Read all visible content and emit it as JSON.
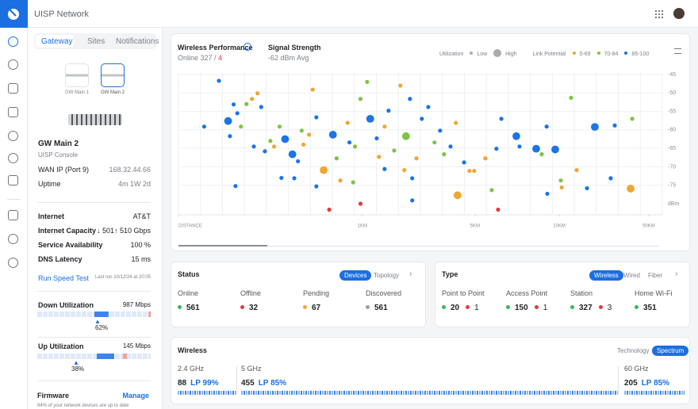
{
  "header": {
    "title": "UISP Network"
  },
  "sidebar": {
    "tabs": [
      "Gateway",
      "Sites",
      "Notifications"
    ],
    "devices": [
      "GW Main 1",
      "GW Main 2"
    ],
    "gateway": {
      "name": "GW Main 2",
      "subtitle": "UISP Console",
      "rows": [
        [
          "WAN IP (Port 9)",
          "168.32.44.66"
        ],
        [
          "Uptime",
          "4m 1W 2d"
        ]
      ]
    },
    "internet": {
      "rows": [
        [
          "Internet",
          "AT&T"
        ],
        [
          "Internet Capacity",
          "↓ 501↑ 510 Gbps"
        ],
        [
          "Service Availability",
          "100 %"
        ],
        [
          "DNS Latency",
          "15 ms"
        ]
      ]
    },
    "speed_test": {
      "action": "Run Speed Test",
      "last_run": "Last run 10/12/24 at 20:05"
    },
    "down": {
      "label": "Down Utilization",
      "max": "987 Mbps",
      "percent": "62%"
    },
    "up": {
      "label": "Up Utilization",
      "max": "145 Mbps",
      "percent": "38%"
    },
    "firmware": {
      "title": "Firmware",
      "action": "Manage",
      "note": "84% of your network devices are up to date"
    }
  },
  "performance": {
    "title": "Wireless Performance",
    "online": "Online 327 / ",
    "offline": "4",
    "signal_title": "Signal Strength",
    "signal_value": "-62 dBm Avg",
    "legend": {
      "utilization": "Utilization",
      "low": "Low",
      "high": "High",
      "link_potential": "Link Potential",
      "ranges": [
        "0-69",
        "70-84",
        "85-100"
      ]
    },
    "point_colors": [
      "#f2a530",
      "#7cc443",
      "#1b74e8",
      "#e23b3b"
    ],
    "xticks": [
      {
        "value": 0,
        "label": "DISTANCE"
      },
      {
        "value": 1,
        "label": "1KM"
      },
      {
        "value": 5,
        "label": "5KM"
      },
      {
        "value": 10,
        "label": "10KM"
      },
      {
        "value": 50,
        "label": "50KM"
      }
    ],
    "ylim": [
      -45,
      -83
    ],
    "yticks": [
      -45,
      -50,
      -55,
      -60,
      -65,
      -70,
      -75
    ],
    "y_unit": "dBm",
    "points": [
      [
        0.22,
        -46.7,
        1,
        2
      ],
      [
        0.14,
        -59.1,
        1,
        2
      ],
      [
        0.31,
        -75.2,
        1,
        2
      ],
      [
        0.3,
        -53.1,
        1,
        2
      ],
      [
        0.27,
        -57.6,
        2,
        2
      ],
      [
        0.28,
        -61.7,
        1,
        2
      ],
      [
        0.32,
        -55.5,
        1,
        2
      ],
      [
        0.34,
        -59.1,
        1,
        1
      ],
      [
        0.37,
        -53,
        1,
        1
      ],
      [
        0.4,
        -51.6,
        1,
        0
      ],
      [
        0.43,
        -50.1,
        1,
        0
      ],
      [
        0.45,
        -53.8,
        1,
        2
      ],
      [
        0.5,
        -63,
        1,
        1
      ],
      [
        0.55,
        -59.1,
        1,
        1
      ],
      [
        0.58,
        -62.5,
        2,
        2
      ],
      [
        0.62,
        -66.6,
        2,
        2
      ],
      [
        0.56,
        -73,
        1,
        2
      ],
      [
        0.65,
        -68.5,
        1,
        2
      ],
      [
        0.68,
        -64,
        1,
        0
      ],
      [
        0.71,
        -61.3,
        1,
        0
      ],
      [
        0.75,
        -56.6,
        1,
        2
      ],
      [
        0.79,
        -70.9,
        2,
        0
      ],
      [
        0.82,
        -81.6,
        1,
        3
      ],
      [
        0.84,
        -61.3,
        2,
        2
      ],
      [
        0.86,
        -67.7,
        1,
        1
      ],
      [
        0.88,
        -73.7,
        1,
        0
      ],
      [
        0.92,
        -58.1,
        1,
        0
      ],
      [
        0.93,
        -63.4,
        1,
        2
      ],
      [
        0.96,
        -64.5,
        1,
        1
      ],
      [
        0.99,
        -51.6,
        1,
        1
      ],
      [
        1.17,
        -47,
        1,
        1
      ],
      [
        1.28,
        -57,
        2,
        2
      ],
      [
        1.51,
        -62.3,
        1,
        2
      ],
      [
        1.59,
        -67.3,
        1,
        0
      ],
      [
        1.79,
        -59.1,
        1,
        0
      ],
      [
        1.93,
        -54.8,
        1,
        2
      ],
      [
        2.13,
        -65.6,
        1,
        1
      ],
      [
        2.35,
        -48,
        1,
        0
      ],
      [
        2.55,
        -61.7,
        2,
        1
      ],
      [
        2.69,
        -51.6,
        1,
        2
      ],
      [
        2.77,
        -73.1,
        1,
        2
      ],
      [
        2.92,
        -67.7,
        1,
        0
      ],
      [
        3.11,
        -57,
        1,
        2
      ],
      [
        3.34,
        -53.8,
        1,
        2
      ],
      [
        3.56,
        -63.4,
        1,
        1
      ],
      [
        3.76,
        -60.2,
        1,
        2
      ],
      [
        3.9,
        -66.6,
        1,
        1
      ],
      [
        4.13,
        -64.5,
        1,
        2
      ],
      [
        4.32,
        -58.1,
        1,
        0
      ],
      [
        4.38,
        -77.7,
        2,
        0
      ],
      [
        4.61,
        -68.8,
        1,
        2
      ],
      [
        4.8,
        -71.1,
        1,
        0
      ],
      [
        4.97,
        -71.1,
        1,
        0
      ],
      [
        5.61,
        -67.7,
        1,
        0
      ],
      [
        5.99,
        -76.3,
        1,
        1
      ],
      [
        6.27,
        -65.1,
        1,
        2
      ],
      [
        6.37,
        -81.6,
        1,
        3
      ],
      [
        6.56,
        -57,
        1,
        2
      ],
      [
        7.45,
        -61.7,
        2,
        2
      ],
      [
        7.64,
        -64.5,
        1,
        2
      ],
      [
        8.63,
        -65.1,
        2,
        2
      ],
      [
        8.96,
        -66.6,
        1,
        1
      ],
      [
        9.29,
        -77.3,
        1,
        2
      ],
      [
        9.25,
        -59.1,
        1,
        2
      ],
      [
        9.76,
        -65.3,
        2,
        2
      ],
      [
        10.7,
        -73.7,
        1,
        1
      ],
      [
        11.1,
        -75.6,
        1,
        0
      ],
      [
        15.3,
        -51.3,
        1,
        1
      ],
      [
        17.8,
        -70.9,
        1,
        0
      ],
      [
        22.4,
        -75.8,
        1,
        2
      ],
      [
        25.9,
        -59.2,
        2,
        2
      ],
      [
        33,
        -73.1,
        1,
        2
      ],
      [
        34.8,
        -58.8,
        1,
        2
      ],
      [
        41.9,
        -75.9,
        2,
        0
      ],
      [
        42.6,
        -57,
        1,
        1
      ],
      [
        0.99,
        -80,
        1,
        3
      ],
      [
        0.73,
        -49.1,
        1,
        0
      ],
      [
        0.52,
        -64.5,
        1,
        0
      ],
      [
        0.67,
        -60.2,
        1,
        1
      ],
      [
        0.41,
        -64.5,
        1,
        2
      ],
      [
        0.47,
        -65.8,
        1,
        2
      ],
      [
        0.75,
        -75.3,
        1,
        2
      ],
      [
        0.63,
        -73.1,
        1,
        2
      ],
      [
        0.95,
        -74.2,
        1,
        1
      ],
      [
        2.77,
        -79.1,
        1,
        2
      ],
      [
        1.79,
        -70.6,
        1,
        2
      ],
      [
        2.49,
        -70.9,
        1,
        0
      ]
    ]
  },
  "status": {
    "title": "Status",
    "tabs": [
      "Devices",
      "Topology"
    ],
    "items": [
      {
        "label": "Online",
        "value": "561",
        "color": "#3cb55a"
      },
      {
        "label": "Offline",
        "value": "32",
        "color": "#e23b3b"
      },
      {
        "label": "Pending",
        "value": "67",
        "color": "#f2a530"
      },
      {
        "label": "Discovered",
        "value": "561",
        "color": "#9aa0a6"
      }
    ]
  },
  "type": {
    "title": "Type",
    "tabs": [
      "Wireless",
      "Wired",
      "Fiber"
    ],
    "items": [
      {
        "label": "Point to Point",
        "ok": "20",
        "bad": "1"
      },
      {
        "label": "Access Point",
        "ok": "150",
        "bad": "1"
      },
      {
        "label": "Station",
        "ok": "327",
        "bad": "3"
      },
      {
        "label": "Home Wi-Fi",
        "ok": "351"
      }
    ]
  },
  "wireless": {
    "title": "Wireless",
    "tabs": [
      "Technology",
      "Spectrum"
    ],
    "bands": [
      {
        "name": "2.4 GHz",
        "count": "88",
        "lp": "LP 99%"
      },
      {
        "name": "5 GHz",
        "count": "455",
        "lp": "LP 85%"
      },
      {
        "name": "60 GHz",
        "count": "205",
        "lp": "LP 85%"
      }
    ]
  }
}
